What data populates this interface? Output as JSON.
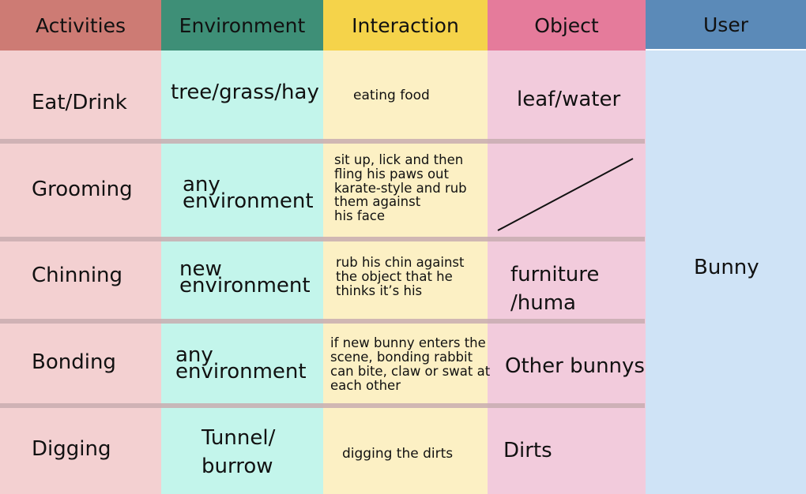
{
  "headers": {
    "activities": "Activities",
    "environment": "Environment",
    "interaction": "Interaction",
    "object": "Object",
    "user": "User"
  },
  "colors": {
    "activities_header": "#cd7b74",
    "environment_header": "#3e8f77",
    "interaction_header": "#f5d34a",
    "object_header": "#e57b9b",
    "user_header": "#5b8ab8",
    "activities_body": "#f3d0d1",
    "environment_body": "#c3f5eb",
    "interaction_body": "#fcf0c4",
    "object_body": "#f2cbdc",
    "user_body": "#cfe3f6"
  },
  "rows": [
    {
      "activity": "Eat/Drink",
      "environment": [
        "tree/grass/hay"
      ],
      "interaction": [
        "eating food"
      ],
      "object": [
        "leaf/water"
      ]
    },
    {
      "activity": "Grooming",
      "environment": [
        "any",
        "environment"
      ],
      "interaction": [
        "sit up, lick and then",
        "fling his paws out",
        "karate-style and rub",
        "them against",
        "his face"
      ],
      "object": []
    },
    {
      "activity": "Chinning",
      "environment": [
        "new",
        "environment"
      ],
      "interaction": [
        "rub his chin against",
        "the object that he",
        "thinks it’s his"
      ],
      "object": [
        "furniture",
        "/huma"
      ]
    },
    {
      "activity": "Bonding",
      "environment": [
        "any",
        "environment"
      ],
      "interaction": [
        "if new bunny enters the",
        "scene, bonding rabbit",
        "can bite, claw or swat at",
        "each other"
      ],
      "object": [
        "Other bunnys"
      ]
    },
    {
      "activity": "Digging",
      "environment": [
        "Tunnel/",
        "burrow"
      ],
      "interaction": [
        "digging the dirts"
      ],
      "object": [
        "Dirts"
      ]
    }
  ],
  "user_value": "Bunny"
}
